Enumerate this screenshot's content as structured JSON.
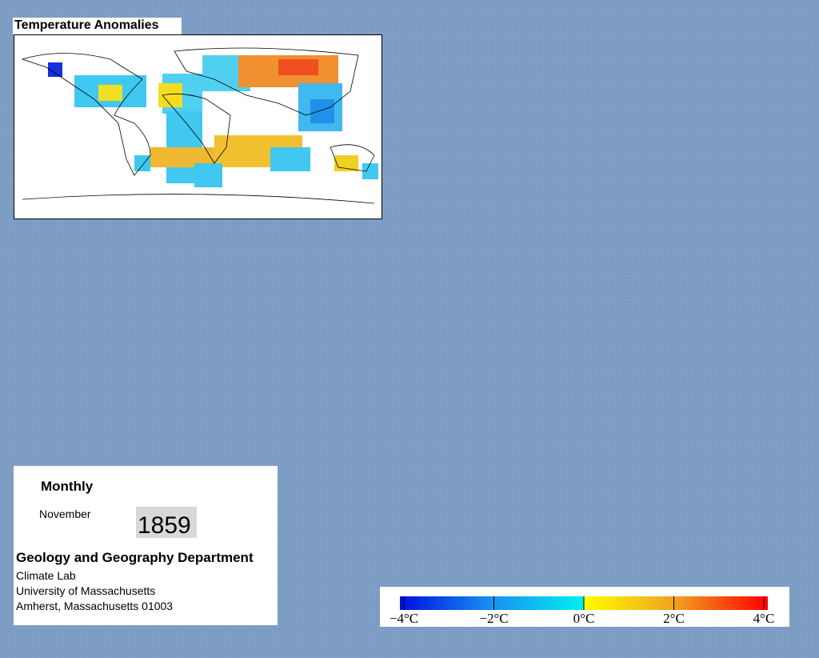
{
  "title": "Temperature Anomalies",
  "info": {
    "frequency": "Monthly",
    "month": "November",
    "year": "1859",
    "department": "Geology and Geography Department",
    "lab": "Climate Lab",
    "university": "University of Massachusetts",
    "address": "Amherst, Massachusetts 01003"
  },
  "colorbar": {
    "range": [
      -4,
      4
    ],
    "ticks": [
      {
        "value": -4,
        "label": "−4°C"
      },
      {
        "value": -2,
        "label": "−2°C"
      },
      {
        "value": 0,
        "label": "0°C"
      },
      {
        "value": 2,
        "label": "2°C"
      },
      {
        "value": 4,
        "label": "4°C"
      }
    ]
  }
}
